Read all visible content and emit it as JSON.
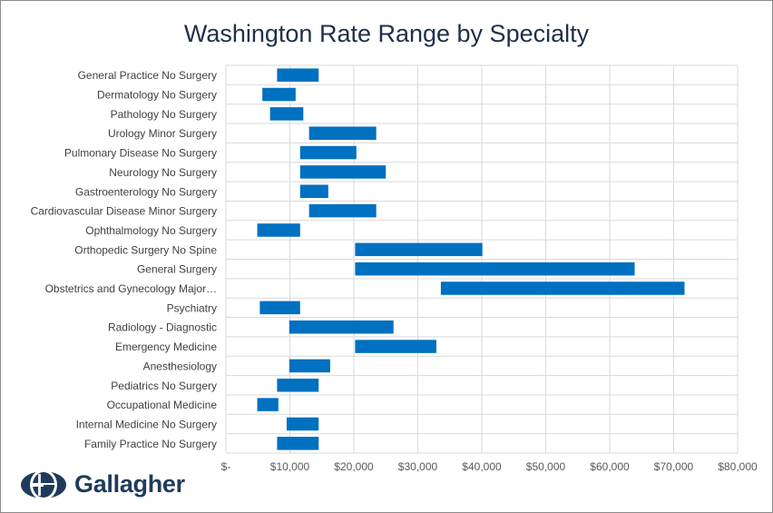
{
  "chart_data": {
    "type": "bar",
    "orientation": "horizontal-floating-range",
    "title": "Washington Rate Range by Specialty",
    "xlabel": "",
    "ylabel": "",
    "xlim": [
      0,
      80000
    ],
    "x_ticks": [
      0,
      10000,
      20000,
      30000,
      40000,
      50000,
      60000,
      70000,
      80000
    ],
    "x_tick_labels": [
      "$-",
      "$10,000",
      "$20,000",
      "$30,000",
      "$40,000",
      "$50,000",
      "$60,000",
      "$70,000",
      "$80,000"
    ],
    "grid": true,
    "legend": "none",
    "bar_color": "#0070c0",
    "categories": [
      "General Practice No Surgery",
      "Dermatology No Surgery",
      "Pathology No Surgery",
      "Urology Minor Surgery",
      "Pulmonary Disease No Surgery",
      "Neurology No Surgery",
      "Gastroenterology No Surgery",
      "Cardiovascular Disease Minor Surgery",
      "Ophthalmology No Surgery",
      "Orthopedic Surgery No Spine",
      "General Surgery",
      "Obstetrics and Gynecology Major…",
      "Psychiatry",
      "Radiology - Diagnostic",
      "Emergency Medicine",
      "Anesthesiology",
      "Pediatrics No Surgery",
      "Occupational Medicine",
      "Internal Medicine No Surgery",
      "Family Practice No Surgery"
    ],
    "low": [
      8000,
      5700,
      6900,
      13000,
      11600,
      11600,
      11600,
      13000,
      4900,
      20200,
      20200,
      33600,
      5300,
      9900,
      20200,
      9900,
      8000,
      4900,
      9500,
      8000
    ],
    "high": [
      14500,
      10900,
      12100,
      23500,
      20400,
      25000,
      16000,
      23500,
      11600,
      40100,
      63900,
      71700,
      11600,
      26200,
      32900,
      16300,
      14500,
      8200,
      14500,
      14500
    ]
  },
  "logo": {
    "text": "Gallagher",
    "icon": "gallagher-globe-logo-icon"
  }
}
